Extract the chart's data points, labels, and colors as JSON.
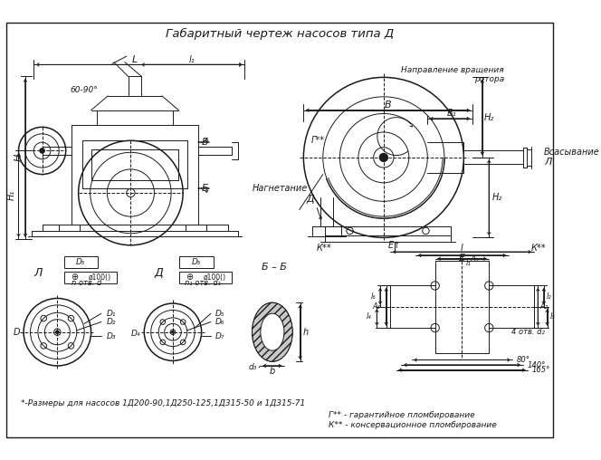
{
  "title": "Габаритный чертеж насосов типа Д",
  "bg_color": "#ffffff",
  "line_color": "#1a1a1a",
  "title_fontsize": 10,
  "note1": "*-Размеры для насосов 1Д200-90,1Д250-125,1Д315-50 и 1Д315-71",
  "note2": "Г** - гарантийное пломбирование",
  "note3": "К** - консервационное пломбирование"
}
